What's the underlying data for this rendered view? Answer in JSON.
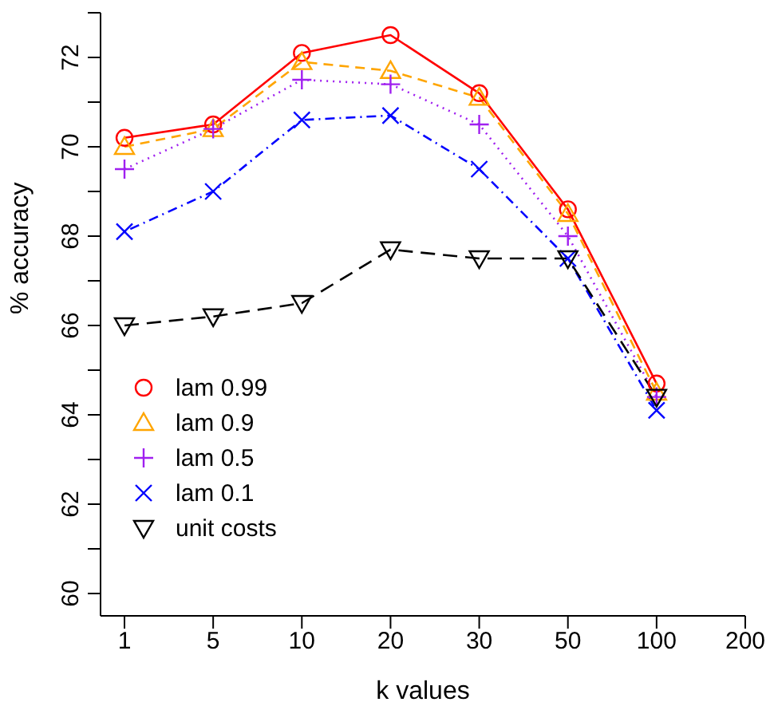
{
  "chart_data": {
    "type": "line",
    "xlabel": "k values",
    "ylabel": "% accuracy",
    "categories": [
      "1",
      "5",
      "10",
      "20",
      "30",
      "50",
      "100",
      "200"
    ],
    "ylim": [
      59.5,
      73
    ],
    "yticks": [
      60,
      {
        "value": 61,
        "label": null
      },
      62,
      {
        "value": 63,
        "label": null
      },
      64,
      {
        "value": 65,
        "label": null
      },
      66,
      {
        "value": 67,
        "label": null
      },
      68,
      {
        "value": 69,
        "label": null
      },
      70,
      {
        "value": 71,
        "label": null
      },
      72,
      {
        "value": 73,
        "label": null
      }
    ],
    "grid": false,
    "legend": "left",
    "series": [
      {
        "name": "lam  0.99",
        "color": "#ff0000",
        "marker": "circle",
        "line_style": "solid",
        "values": [
          70.2,
          70.5,
          72.1,
          72.5,
          71.2,
          68.6,
          64.7,
          null
        ]
      },
      {
        "name": "lam  0.9",
        "color": "#ffa500",
        "marker": "triangle",
        "line_style": "dashed",
        "values": [
          70.0,
          70.4,
          71.9,
          71.7,
          71.1,
          68.5,
          64.5,
          null
        ]
      },
      {
        "name": "lam  0.5",
        "color": "#a020f0",
        "marker": "plus",
        "line_style": "dotted",
        "values": [
          69.5,
          70.4,
          71.5,
          71.4,
          70.5,
          68.0,
          64.4,
          null
        ]
      },
      {
        "name": "lam  0.1",
        "color": "#0000ff",
        "marker": "x",
        "line_style": "dotdash",
        "values": [
          68.1,
          69.0,
          70.6,
          70.7,
          69.5,
          67.5,
          64.1,
          null
        ]
      },
      {
        "name": "unit costs",
        "color": "#000000",
        "marker": "triangle-down",
        "line_style": "longdash",
        "values": [
          66.0,
          66.2,
          66.5,
          67.7,
          67.5,
          67.5,
          64.4,
          null
        ]
      }
    ]
  }
}
